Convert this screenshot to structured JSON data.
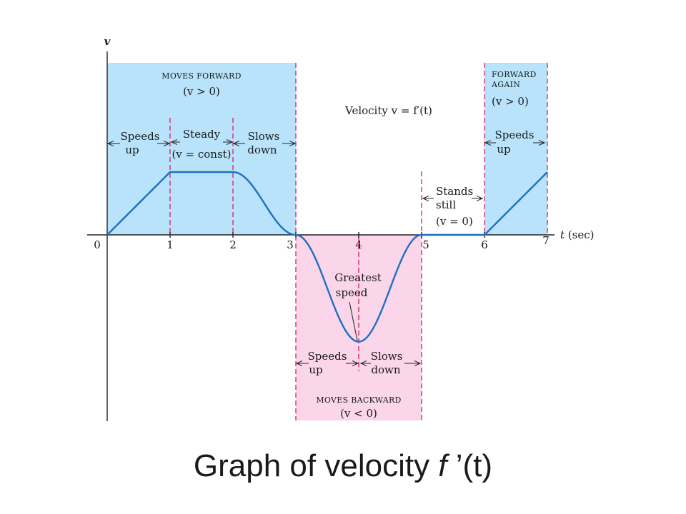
{
  "caption": {
    "prefix": "Graph of velocity ",
    "func": "f",
    "suffix": " ’(t)"
  },
  "chart_data": {
    "type": "line",
    "xlabel": "t (sec)",
    "ylabel": "v",
    "title": "Velocity v = f′(t)",
    "xlim": [
      0,
      7
    ],
    "ylim": [
      -1.75,
      2.8
    ],
    "x_ticks": [
      {
        "x": 0,
        "label": "0"
      },
      {
        "x": 1,
        "label": "1"
      },
      {
        "x": 2,
        "label": "2"
      },
      {
        "x": 3,
        "label": "3"
      },
      {
        "x": 4,
        "label": "4"
      },
      {
        "x": 5,
        "label": "5"
      },
      {
        "x": 6,
        "label": "6"
      },
      {
        "x": 7,
        "label": "7"
      }
    ],
    "series": [
      {
        "points": [
          [
            0,
            0
          ],
          [
            1,
            1
          ],
          [
            2,
            1
          ],
          [
            3,
            0
          ],
          [
            4,
            -1.7
          ],
          [
            5,
            0
          ],
          [
            6,
            0
          ],
          [
            7,
            1
          ]
        ]
      }
    ],
    "regions": [
      {
        "x0": 0,
        "x1": 3,
        "sign": "positive",
        "color": "#b8e3fa",
        "label": "MOVES FORWARD",
        "condition": "(v > 0)"
      },
      {
        "x0": 3,
        "x1": 5,
        "sign": "negative",
        "color": "#fbd5ea",
        "label": "MOVES BACKWARD",
        "condition": "(v < 0)"
      },
      {
        "x0": 6,
        "x1": 7,
        "sign": "positive",
        "color": "#b8e3fa",
        "label_lines": [
          "FORWARD",
          "AGAIN"
        ],
        "condition": "(v > 0)"
      }
    ],
    "dashed_lines_x": [
      1,
      2,
      3,
      4,
      5,
      6,
      7
    ],
    "annotations": {
      "speeds_up_1": [
        "Speeds",
        "up"
      ],
      "steady": [
        "Steady",
        "(v = const)"
      ],
      "slows_down_1": [
        "Slows",
        "down"
      ],
      "greatest_speed": [
        "Greatest",
        "speed"
      ],
      "speeds_up_2": [
        "Speeds",
        "up"
      ],
      "slows_down_2": [
        "Slows",
        "down"
      ],
      "stands_still": [
        "Stands",
        "still",
        "(v = 0)"
      ],
      "speeds_up_3": [
        "Speeds",
        "up"
      ]
    },
    "colors": {
      "curve": "#1f6fc2",
      "dash": "#d61f6a",
      "forward": "#b8e3fa",
      "backward": "#fbd5ea"
    }
  }
}
